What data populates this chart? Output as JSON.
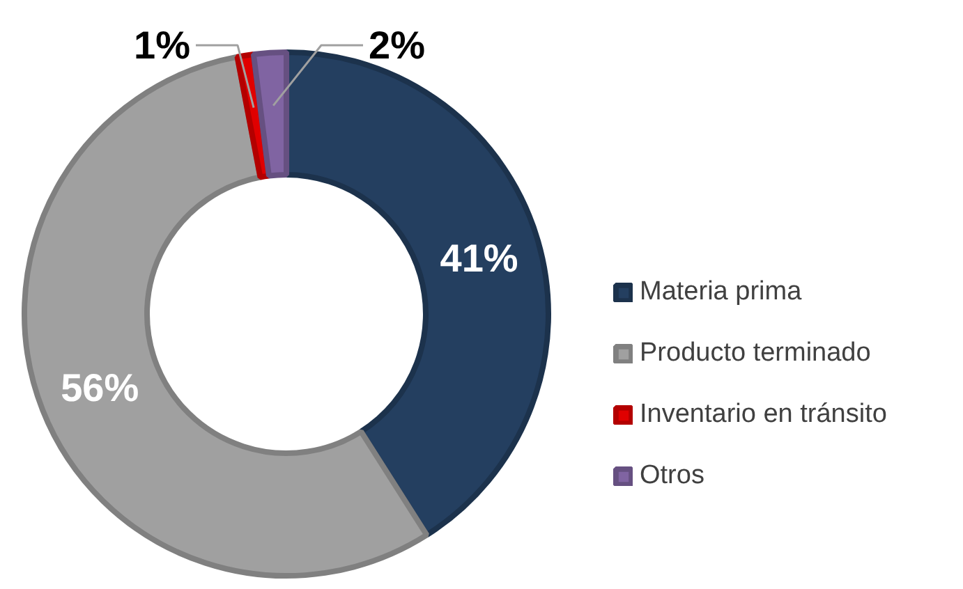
{
  "chart_data": {
    "type": "donut",
    "categories": [
      "Materia prima",
      "Producto terminado",
      "Inventario en tránsito",
      "Otros"
    ],
    "values": [
      41,
      56,
      1,
      2
    ],
    "colors": [
      "#243f60",
      "#a0a0a0",
      "#e00000",
      "#8064a2"
    ],
    "value_labels": [
      "41%",
      "56%",
      "1%",
      "2%"
    ],
    "legend": "right"
  }
}
